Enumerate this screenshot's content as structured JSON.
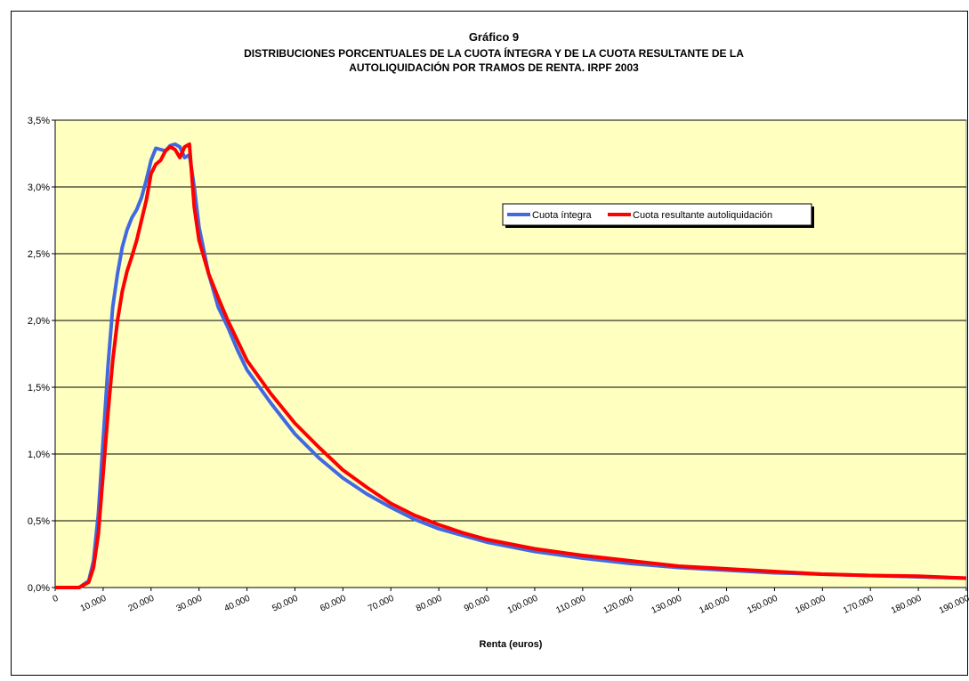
{
  "chart_data": {
    "type": "line",
    "title": "Gráfico 9",
    "subtitle": [
      "DISTRIBUCIONES PORCENTUALES DE LA CUOTA ÍNTEGRA Y DE LA CUOTA RESULTANTE DE LA",
      "AUTOLIQUIDACIÓN POR TRAMOS DE RENTA.  IRPF 2003"
    ],
    "xlabel": "Renta (euros)",
    "x": [
      0,
      5000,
      7000,
      8000,
      9000,
      10000,
      11000,
      12000,
      13000,
      14000,
      15000,
      16000,
      17000,
      18000,
      19000,
      20000,
      21000,
      22000,
      23000,
      24000,
      25000,
      26000,
      27000,
      28000,
      29000,
      30000,
      32000,
      34000,
      36000,
      38000,
      40000,
      45000,
      50000,
      55000,
      60000,
      65000,
      70000,
      75000,
      80000,
      85000,
      90000,
      100000,
      110000,
      120000,
      130000,
      140000,
      150000,
      160000,
      170000,
      180000,
      190000
    ],
    "series": [
      {
        "name": "Cuota íntegra",
        "color": "#4169e1",
        "values": [
          0,
          0,
          0.05,
          0.2,
          0.55,
          1.1,
          1.65,
          2.1,
          2.35,
          2.55,
          2.68,
          2.77,
          2.83,
          2.92,
          3.05,
          3.2,
          3.29,
          3.28,
          3.27,
          3.31,
          3.32,
          3.3,
          3.22,
          3.24,
          3.0,
          2.7,
          2.35,
          2.1,
          1.95,
          1.78,
          1.63,
          1.38,
          1.15,
          0.97,
          0.82,
          0.7,
          0.6,
          0.51,
          0.44,
          0.39,
          0.34,
          0.27,
          0.22,
          0.18,
          0.15,
          0.13,
          0.11,
          0.1,
          0.09,
          0.08,
          0.07
        ]
      },
      {
        "name": "Cuota resultante autoliquidación",
        "color": "#ff0000",
        "values": [
          0,
          0,
          0.04,
          0.15,
          0.4,
          0.85,
          1.3,
          1.7,
          2.0,
          2.22,
          2.37,
          2.48,
          2.6,
          2.75,
          2.9,
          3.1,
          3.17,
          3.2,
          3.27,
          3.3,
          3.28,
          3.22,
          3.3,
          3.32,
          2.85,
          2.6,
          2.35,
          2.17,
          2.0,
          1.85,
          1.7,
          1.45,
          1.23,
          1.05,
          0.88,
          0.75,
          0.63,
          0.54,
          0.47,
          0.41,
          0.36,
          0.29,
          0.24,
          0.2,
          0.16,
          0.14,
          0.12,
          0.1,
          0.09,
          0.085,
          0.07
        ]
      }
    ],
    "xlim": [
      0,
      190000
    ],
    "xticks": [
      0,
      {
        "value": 10000,
        "label": "10.000"
      },
      {
        "value": 20000,
        "label": "20.000"
      },
      {
        "value": 30000,
        "label": "30.000"
      },
      {
        "value": 40000,
        "label": "40.000"
      },
      {
        "value": 50000,
        "label": "50.000"
      },
      {
        "value": 60000,
        "label": "60.000"
      },
      {
        "value": 70000,
        "label": "70.000"
      },
      {
        "value": 80000,
        "label": "80.000"
      },
      {
        "value": 90000,
        "label": "90.000"
      },
      {
        "value": 100000,
        "label": "100.000"
      },
      {
        "value": 110000,
        "label": "110.000"
      },
      {
        "value": 120000,
        "label": "120.000"
      },
      {
        "value": 130000,
        "label": "130.000"
      },
      {
        "value": 140000,
        "label": "140.000"
      },
      {
        "value": 150000,
        "label": "150.000"
      },
      {
        "value": 160000,
        "label": "160.000"
      },
      {
        "value": 170000,
        "label": "170.000"
      },
      {
        "value": 180000,
        "label": "180.000"
      },
      {
        "value": 190000,
        "label": "190.000"
      }
    ],
    "ylim": [
      0,
      3.5
    ],
    "yticks": [
      {
        "value": 0,
        "label": "0,0%"
      },
      {
        "value": 0.5,
        "label": "0,5%"
      },
      {
        "value": 1.0,
        "label": "1,0%"
      },
      {
        "value": 1.5,
        "label": "1,5%"
      },
      {
        "value": 2.0,
        "label": "2,0%"
      },
      {
        "value": 2.5,
        "label": "2,5%"
      },
      {
        "value": 3.0,
        "label": "3,0%"
      },
      {
        "value": 3.5,
        "label": "3,5%"
      }
    ],
    "grid": true,
    "legend": "upper right"
  }
}
